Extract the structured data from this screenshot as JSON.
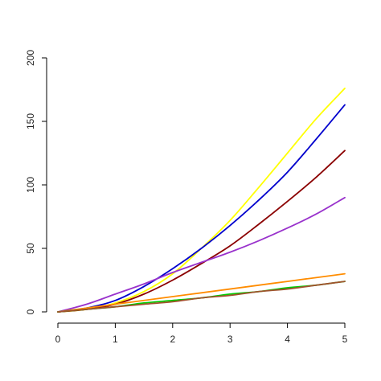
{
  "chart_data": {
    "type": "line",
    "title": "",
    "xlabel": "",
    "ylabel": "",
    "xlim": [
      0,
      5
    ],
    "ylim": [
      0,
      200
    ],
    "grid": false,
    "x_ticks": [
      0,
      1,
      2,
      3,
      4,
      5
    ],
    "x_tick_labels": [
      "0",
      "1",
      "2",
      "3",
      "4",
      "5"
    ],
    "y_ticks": [
      0,
      50,
      100,
      150,
      200
    ],
    "y_tick_labels": [
      "0",
      "50",
      "100",
      "150",
      "200"
    ],
    "x": [
      0,
      0.5,
      1,
      1.5,
      2,
      2.5,
      3,
      3.5,
      4,
      4.5,
      5
    ],
    "series": [
      {
        "color": "#ffff00",
        "values": [
          0,
          2,
          7,
          16,
          30,
          50,
          72,
          98,
          125,
          152,
          176
        ]
      },
      {
        "color": "#0000cd",
        "values": [
          0,
          3,
          9,
          20,
          34,
          50,
          68,
          88,
          110,
          136,
          163
        ]
      },
      {
        "color": "#8b0000",
        "values": [
          0,
          2,
          6,
          14,
          25,
          38,
          52,
          69,
          87,
          106,
          127
        ]
      },
      {
        "color": "#9932cc",
        "values": [
          0,
          6,
          14,
          22,
          31,
          39,
          47,
          56,
          66,
          77,
          90
        ]
      },
      {
        "color": "#ff8c00",
        "values": [
          0,
          3,
          6,
          9,
          12,
          15,
          18,
          21,
          24,
          27,
          30
        ]
      },
      {
        "color": "#00cc00",
        "values": [
          0,
          2,
          4,
          7,
          9,
          11,
          14,
          16,
          19,
          21,
          24
        ]
      },
      {
        "color": "#a0522d",
        "values": [
          0,
          2,
          4,
          6,
          8,
          11,
          13,
          16,
          18,
          21,
          24
        ]
      }
    ]
  }
}
